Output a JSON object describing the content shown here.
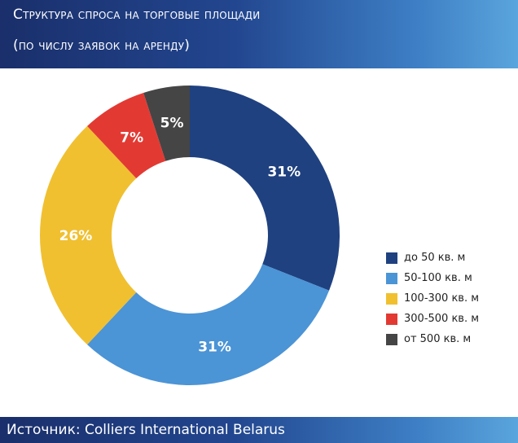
{
  "header": {
    "title_line1": "Структура спроса на торговые площади",
    "title_line2": "(по числу заявок на аренду)"
  },
  "footer": {
    "source": "Источник: Colliers International Belarus"
  },
  "colors": {
    "header_dark": "#1a2f6b",
    "header_light": "#5aa5dd"
  },
  "chart_data": {
    "type": "pie",
    "categories": [
      "до 50 кв. м",
      "50-100 кв. м",
      "100-300 кв. м",
      "300-500 кв. м",
      "от 500 кв. м"
    ],
    "values": [
      31,
      31,
      26,
      7,
      5
    ],
    "labels": [
      "31%",
      "31%",
      "26%",
      "7%",
      "5%"
    ],
    "colors": [
      "#1f4180",
      "#4b94d6",
      "#f0c030",
      "#e23a33",
      "#454545"
    ],
    "donut": true,
    "start": "12 o'clock",
    "direction": "clockwise",
    "legend_position": "right"
  }
}
